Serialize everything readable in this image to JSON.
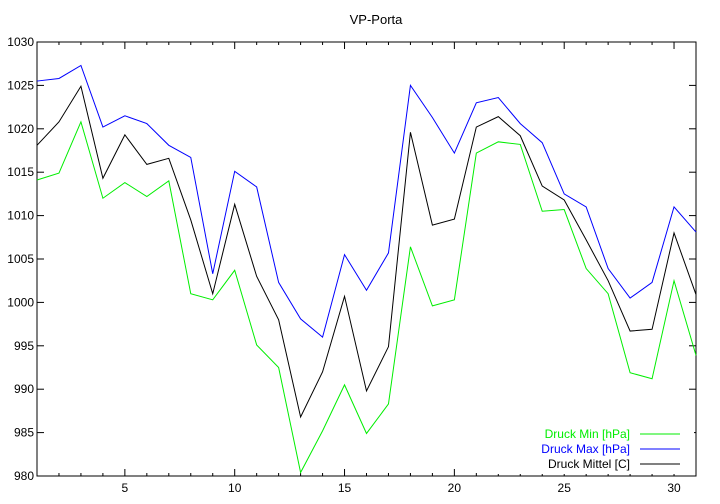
{
  "chart_data": {
    "type": "line",
    "title": "VP-Porta",
    "xlabel": "",
    "ylabel": "",
    "xlim": [
      1,
      31
    ],
    "ylim": [
      980,
      1030
    ],
    "x_ticks": [
      5,
      10,
      15,
      20,
      25,
      30
    ],
    "y_ticks": [
      980,
      985,
      990,
      995,
      1000,
      1005,
      1010,
      1015,
      1020,
      1025,
      1030
    ],
    "grid": false,
    "legend_position": "bottom-right",
    "x": [
      1,
      2,
      3,
      4,
      5,
      6,
      7,
      8,
      9,
      10,
      11,
      12,
      13,
      14,
      15,
      16,
      17,
      18,
      19,
      20,
      21,
      22,
      23,
      24,
      25,
      26,
      27,
      28,
      29,
      30,
      31
    ],
    "series": [
      {
        "name": "Druck Min [hPa]",
        "color": "#00ee00",
        "values": [
          1014.1,
          1014.9,
          1020.8,
          1012.0,
          1013.8,
          1012.2,
          1014.0,
          1001.0,
          1000.3,
          1003.7,
          995.1,
          992.5,
          980.4,
          985.2,
          990.5,
          984.9,
          988.3,
          1006.4,
          999.6,
          1000.3,
          1017.2,
          1018.5,
          1018.2,
          1010.5,
          1010.7,
          1003.9,
          1001.0,
          991.9,
          991.2,
          1002.5,
          993.9
        ]
      },
      {
        "name": "Druck Max [hPa]",
        "color": "#0000ff",
        "values": [
          1025.5,
          1025.8,
          1027.3,
          1020.2,
          1021.5,
          1020.6,
          1018.1,
          1016.7,
          1003.3,
          1015.1,
          1013.3,
          1002.3,
          998.1,
          996.0,
          1005.5,
          1001.4,
          1005.7,
          1025.0,
          1021.3,
          1017.2,
          1023.0,
          1023.6,
          1020.6,
          1018.4,
          1012.5,
          1011.0,
          1003.9,
          1000.5,
          1002.3,
          1011.0,
          1008.1
        ]
      },
      {
        "name": "Druck Mittel [C]",
        "color": "#000000",
        "values": [
          1018.1,
          1020.8,
          1024.9,
          1014.3,
          1019.3,
          1015.9,
          1016.6,
          1009.5,
          1001.0,
          1011.3,
          1003.0,
          998.0,
          986.8,
          992.0,
          1000.7,
          989.8,
          994.9,
          1019.6,
          1008.9,
          1009.6,
          1020.2,
          1021.4,
          1019.2,
          1013.4,
          1011.8,
          1007.2,
          1002.5,
          996.7,
          996.9,
          1008.0,
          1000.9
        ]
      }
    ]
  }
}
